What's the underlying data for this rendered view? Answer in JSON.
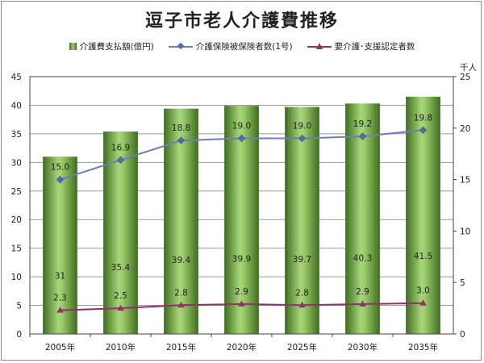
{
  "chart_data": {
    "type": "bar",
    "title": "逗子市老人介護費推移",
    "categories": [
      "2005年",
      "2010年",
      "2015年",
      "2020年",
      "2025年",
      "2030年",
      "2035年"
    ],
    "series": [
      {
        "name": "介護費支払額(億円)",
        "type": "bar",
        "axis": "left",
        "values": [
          31,
          35.4,
          39.4,
          39.9,
          39.7,
          40.3,
          41.5
        ],
        "labels": [
          "31",
          "35.4",
          "39.4",
          "39.9",
          "39.7",
          "40.3",
          "41.5"
        ],
        "color": "#6fa13e"
      },
      {
        "name": "介護保険被保険者数(1号)",
        "type": "line",
        "axis": "right",
        "values": [
          15.0,
          16.9,
          18.8,
          19.0,
          19.0,
          19.2,
          19.8
        ],
        "labels": [
          "15.0",
          "16.9",
          "18.8",
          "19.0",
          "19.0",
          "19.2",
          "19.8"
        ],
        "color": "#6e7fb8",
        "marker": "diamond"
      },
      {
        "name": "要介護･支援認定者数",
        "type": "line",
        "axis": "right",
        "values": [
          2.3,
          2.5,
          2.8,
          2.9,
          2.8,
          2.9,
          3.0
        ],
        "labels": [
          "2.3",
          "2.5",
          "2.8",
          "2.9",
          "2.8",
          "2.9",
          "3.0"
        ],
        "color": "#93306a",
        "marker": "triangle"
      }
    ],
    "y_left": {
      "min": 0,
      "max": 45,
      "step": 5,
      "ticks": [
        "0",
        "5",
        "10",
        "15",
        "20",
        "25",
        "30",
        "35",
        "40",
        "45"
      ]
    },
    "y_right": {
      "min": 0,
      "max": 25,
      "step": 5,
      "ticks": [
        "0",
        "5",
        "10",
        "15",
        "20",
        "25"
      ],
      "unit_label": "千人"
    },
    "grid": true,
    "legend_position": "top"
  }
}
